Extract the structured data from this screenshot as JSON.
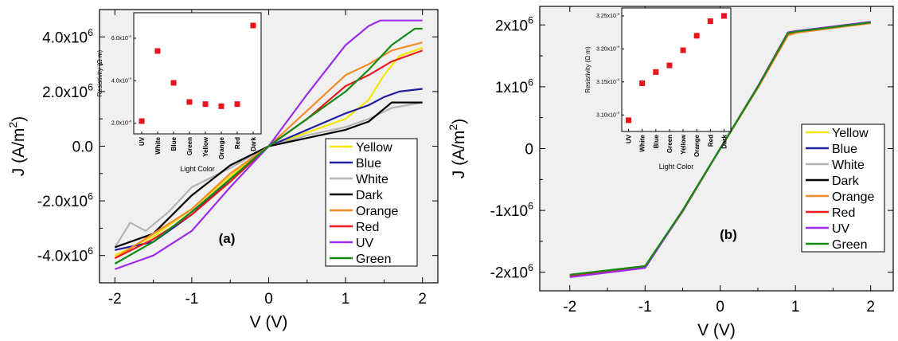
{
  "chart_data": [
    {
      "type": "line",
      "panel_label": "(a)",
      "xlabel": "V (V)",
      "ylabel_base": "J (A/m",
      "ylabel_sup": "2",
      "ylabel_close": ")",
      "xlim": [
        -2.2,
        2.2
      ],
      "ylim": [
        -5000000,
        5000000
      ],
      "x_ticks": [
        -2,
        -1,
        0,
        1,
        2
      ],
      "x_tick_labels": [
        "-2",
        "-1",
        "0",
        "1",
        "2"
      ],
      "y_ticks": [
        -4000000,
        -2000000,
        0,
        2000000,
        4000000
      ],
      "y_tick_labels": [
        {
          "base": "-4.0x10",
          "exp": "6"
        },
        {
          "base": "-2.0x10",
          "exp": "6"
        },
        {
          "base": "0.0",
          "exp": ""
        },
        {
          "base": "2.0x10",
          "exp": "6"
        },
        {
          "base": "4.0x10",
          "exp": "6"
        }
      ],
      "legend_placement": "lower-right",
      "series": [
        {
          "name": "Yellow",
          "color": "#f5e600",
          "x": [
            -2,
            -1.5,
            -1,
            -0.5,
            0,
            0.5,
            1,
            1.3,
            1.5,
            1.7,
            2
          ],
          "y": [
            -4000000,
            -3300000,
            -2300000,
            -1100000,
            0,
            500000,
            1000000,
            1700000,
            2600000,
            3300000,
            3600000
          ]
        },
        {
          "name": "Blue",
          "color": "#1e1ea0",
          "x": [
            -2,
            -1.5,
            -1,
            -0.5,
            0,
            0.5,
            1,
            1.3,
            1.5,
            1.7,
            2
          ],
          "y": [
            -3800000,
            -3500000,
            -2500000,
            -1200000,
            0,
            600000,
            1200000,
            1500000,
            1800000,
            2000000,
            2100000
          ]
        },
        {
          "name": "White",
          "color": "#b4b4b4",
          "x": [
            -2,
            -1.8,
            -1.6,
            -1.3,
            -1,
            -0.5,
            0,
            0.5,
            1,
            1.3,
            1.6,
            2
          ],
          "y": [
            -3700000,
            -2800000,
            -3100000,
            -2400000,
            -1500000,
            -800000,
            0,
            400000,
            700000,
            1000000,
            1400000,
            1600000
          ]
        },
        {
          "name": "Dark",
          "color": "#000000",
          "x": [
            -2,
            -1.5,
            -1,
            -0.5,
            0,
            0.5,
            1,
            1.3,
            1.6,
            2
          ],
          "y": [
            -3700000,
            -3200000,
            -1800000,
            -700000,
            0,
            300000,
            600000,
            900000,
            1600000,
            1600000
          ]
        },
        {
          "name": "Orange",
          "color": "#f28c28",
          "x": [
            -2,
            -1.5,
            -1,
            -0.5,
            0,
            0.5,
            1,
            1.3,
            1.6,
            2
          ],
          "y": [
            -4100000,
            -3200000,
            -2300000,
            -1000000,
            0,
            1300000,
            2600000,
            3000000,
            3500000,
            3800000
          ]
        },
        {
          "name": "Red",
          "color": "#e81e1e",
          "x": [
            -2,
            -1.5,
            -1,
            -0.5,
            0,
            0.5,
            1,
            1.3,
            1.6,
            2
          ],
          "y": [
            -4100000,
            -3400000,
            -2500000,
            -1300000,
            0,
            1000000,
            2200000,
            2600000,
            3100000,
            3500000
          ]
        },
        {
          "name": "UV",
          "color": "#9b2ce8",
          "x": [
            -2,
            -1.5,
            -1,
            -0.5,
            0,
            0.5,
            1,
            1.3,
            1.45,
            2
          ],
          "y": [
            -4500000,
            -4000000,
            -3100000,
            -1500000,
            0,
            1900000,
            3700000,
            4400000,
            4600000,
            4600000
          ]
        },
        {
          "name": "Green",
          "color": "#138a13",
          "x": [
            -2,
            -1.5,
            -1,
            -0.5,
            0,
            0.5,
            1,
            1.3,
            1.6,
            1.9,
            2
          ],
          "y": [
            -4300000,
            -3500000,
            -2400000,
            -1200000,
            0,
            1000000,
            2000000,
            2800000,
            3700000,
            4300000,
            4300000
          ]
        }
      ],
      "inset": {
        "type": "scatter",
        "xlabel": "Light Color",
        "ylabel": "Resistivity (Ω m)",
        "categories": [
          "UV",
          "White",
          "Blue",
          "Green",
          "Yellow",
          "Orange",
          "Red",
          "Dark"
        ],
        "values": [
          0.00021,
          0.00054,
          0.00039,
          0.0003,
          0.00029,
          0.00028,
          0.00029,
          0.00066
        ],
        "ylim": [
          0.00015,
          0.00072
        ],
        "y_ticks": [
          0.0002,
          0.0004,
          0.0006
        ],
        "y_tick_labels": [
          {
            "base": "2.0x10",
            "exp": "-4"
          },
          {
            "base": "4.0x10",
            "exp": "-4"
          },
          {
            "base": "6.0x10",
            "exp": "-4"
          }
        ],
        "marker_color": "#e8141e"
      }
    },
    {
      "type": "line",
      "panel_label": "(b)",
      "xlabel": "V (V)",
      "ylabel_base": "J (A/m",
      "ylabel_sup": "2",
      "ylabel_close": ")",
      "xlim": [
        -2.4,
        2.3
      ],
      "ylim": [
        -2300000,
        2300000
      ],
      "x_ticks": [
        -2,
        -1,
        0,
        1,
        2
      ],
      "x_tick_labels": [
        "-2",
        "-1",
        "0",
        "1",
        "2"
      ],
      "y_ticks": [
        -2000000,
        -1000000,
        0,
        1000000,
        2000000
      ],
      "y_tick_labels": [
        {
          "base": "-2x10",
          "exp": "6"
        },
        {
          "base": "-1x10",
          "exp": "6"
        },
        {
          "base": "0",
          "exp": ""
        },
        {
          "base": "1x10",
          "exp": "6"
        },
        {
          "base": "2x10",
          "exp": "6"
        }
      ],
      "legend_placement": "right",
      "series": [
        {
          "name": "Yellow",
          "color": "#f5e600",
          "x": [
            -2,
            -1,
            -0.5,
            0,
            0.5,
            0.9,
            1,
            2
          ],
          "y": [
            -2040000,
            -1900000,
            -1000000,
            0,
            1000000,
            1850000,
            1880000,
            2030000
          ]
        },
        {
          "name": "Blue",
          "color": "#1e1ea0",
          "x": [
            -2,
            -1,
            -0.5,
            0,
            0.5,
            0.9,
            1,
            2
          ],
          "y": [
            -2050000,
            -1910000,
            -1000000,
            0,
            1000000,
            1860000,
            1890000,
            2040000
          ]
        },
        {
          "name": "White",
          "color": "#b4b4b4",
          "x": [
            -2,
            -1,
            -0.5,
            0,
            0.5,
            0.9,
            1,
            2
          ],
          "y": [
            -2040000,
            -1900000,
            -1000000,
            0,
            1000000,
            1850000,
            1880000,
            2030000
          ]
        },
        {
          "name": "Dark",
          "color": "#000000",
          "x": [
            -2,
            -1,
            -0.5,
            0,
            0.5,
            0.9,
            1,
            2
          ],
          "y": [
            -2060000,
            -1920000,
            -1000000,
            0,
            1000000,
            1870000,
            1890000,
            2040000
          ]
        },
        {
          "name": "Orange",
          "color": "#f28c28",
          "x": [
            -2,
            -1,
            -0.5,
            0,
            0.5,
            0.9,
            1,
            2
          ],
          "y": [
            -2050000,
            -1910000,
            -1020000,
            0,
            980000,
            1830000,
            1870000,
            2030000
          ]
        },
        {
          "name": "Red",
          "color": "#e81e1e",
          "x": [
            -2,
            -1,
            -0.5,
            0,
            0.5,
            0.9,
            1,
            2
          ],
          "y": [
            -2060000,
            -1920000,
            -1000000,
            0,
            1000000,
            1860000,
            1890000,
            2040000
          ]
        },
        {
          "name": "UV",
          "color": "#9b2ce8",
          "x": [
            -2,
            -1,
            -0.5,
            0,
            0.5,
            0.9,
            1,
            2
          ],
          "y": [
            -2080000,
            -1930000,
            -1010000,
            0,
            1010000,
            1880000,
            1900000,
            2050000
          ]
        },
        {
          "name": "Green",
          "color": "#138a13",
          "x": [
            -2,
            -1,
            -0.5,
            0,
            0.5,
            0.9,
            1,
            2
          ],
          "y": [
            -2040000,
            -1900000,
            -1000000,
            0,
            1000000,
            1870000,
            1890000,
            2040000
          ]
        }
      ],
      "inset": {
        "type": "scatter",
        "xlabel": "Light Color",
        "ylabel": "Resistivity (Ω m)",
        "categories": [
          "UV",
          "White",
          "Blue",
          "Green",
          "Yellow",
          "Orange",
          "Red",
          "Dark"
        ],
        "values": [
          0.0003092,
          0.0003148,
          0.0003165,
          0.0003175,
          0.0003198,
          0.000322,
          0.0003242,
          0.000325
        ],
        "ylim": [
          0.0003075,
          0.0003262
        ],
        "y_ticks": [
          0.00031,
          0.000315,
          0.00032,
          0.000325
        ],
        "y_tick_labels": [
          {
            "base": "3.10x10",
            "exp": "-4"
          },
          {
            "base": "3.15x10",
            "exp": "-4"
          },
          {
            "base": "3.20x10",
            "exp": "-4"
          },
          {
            "base": "3.25x10",
            "exp": "-4"
          }
        ],
        "marker_color": "#e8141e"
      }
    }
  ]
}
